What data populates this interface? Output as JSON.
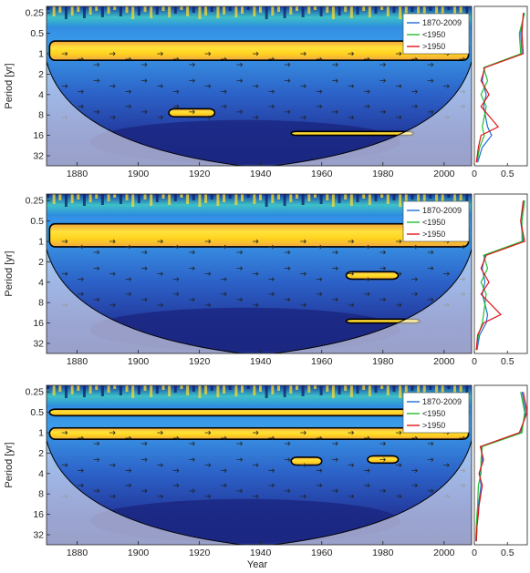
{
  "figure": {
    "x_label": "Year",
    "y_label": "Period [yr]"
  },
  "chart_data": [
    {
      "type": "heatmap",
      "title": "",
      "xlabel": "",
      "ylabel": "Period [yr]",
      "x_ticks": [
        1880,
        1900,
        1920,
        1940,
        1960,
        1980,
        2000
      ],
      "y_ticks": [
        "0.25",
        "0.5",
        "1",
        "2",
        "4",
        "8",
        "16",
        "32"
      ],
      "xlim": [
        1870,
        2009
      ],
      "ylim_period": [
        0.2,
        45
      ],
      "log_scale_y": true,
      "significant_bands": [
        {
          "x0": 1871,
          "x1": 2008,
          "p0": 0.65,
          "p1": 1.25
        },
        {
          "x0": 1910,
          "x1": 1925,
          "p0": 6.5,
          "p1": 8.5
        },
        {
          "x0": 1950,
          "x1": 1990,
          "p0": 14,
          "p1": 16
        }
      ],
      "cone_min_year": 1939,
      "side_panel": {
        "x_ticks": [
          "0",
          "0.5"
        ],
        "xlim": [
          0,
          0.8
        ],
        "series": [
          {
            "name": "1870-2009",
            "color": "#1f6fd6",
            "values": [
              0.75,
              0.7,
              0.72,
              0.15,
              0.12,
              0.18,
              0.14,
              0.2,
              0.26,
              0.12,
              0.05
            ]
          },
          {
            "name": "<1950",
            "color": "#1fbf2f",
            "values": [
              0.76,
              0.68,
              0.7,
              0.14,
              0.2,
              0.1,
              0.18,
              0.12,
              0.15,
              0.08,
              0.04
            ]
          },
          {
            "name": ">1950",
            "color": "#e0141a",
            "values": [
              0.74,
              0.72,
              0.74,
              0.16,
              0.1,
              0.22,
              0.1,
              0.36,
              0.1,
              0.06,
              0.03
            ]
          }
        ]
      },
      "legend": {
        "position": "top-right",
        "entries": [
          "1870-2009",
          "<1950",
          ">1950"
        ]
      }
    },
    {
      "type": "heatmap",
      "title": "",
      "xlabel": "",
      "ylabel": "Period [yr]",
      "x_ticks": [
        1880,
        1900,
        1920,
        1940,
        1960,
        1980,
        2000
      ],
      "y_ticks": [
        "0.25",
        "0.5",
        "1",
        "2",
        "4",
        "8",
        "16",
        "32"
      ],
      "xlim": [
        1870,
        2009
      ],
      "ylim_period": [
        0.2,
        45
      ],
      "log_scale_y": true,
      "significant_bands": [
        {
          "x0": 1871,
          "x1": 2008,
          "p0": 0.55,
          "p1": 1.2
        },
        {
          "x0": 1968,
          "x1": 1985,
          "p0": 2.8,
          "p1": 3.6
        },
        {
          "x0": 1968,
          "x1": 1992,
          "p0": 14,
          "p1": 16
        }
      ],
      "cone_min_year": 1939,
      "side_panel": {
        "x_ticks": [
          "0",
          "0.5"
        ],
        "xlim": [
          0,
          0.8
        ],
        "series": [
          {
            "name": "1870-2009",
            "color": "#1f6fd6",
            "values": [
              0.75,
              0.7,
              0.74,
              0.16,
              0.12,
              0.16,
              0.12,
              0.2,
              0.18,
              0.08,
              0.04
            ]
          },
          {
            "name": "<1950",
            "color": "#1fbf2f",
            "values": [
              0.76,
              0.72,
              0.72,
              0.14,
              0.2,
              0.1,
              0.18,
              0.14,
              0.12,
              0.06,
              0.03
            ]
          },
          {
            "name": ">1950",
            "color": "#e0141a",
            "values": [
              0.74,
              0.7,
              0.76,
              0.18,
              0.1,
              0.22,
              0.1,
              0.4,
              0.14,
              0.05,
              0.03
            ]
          }
        ]
      },
      "legend": {
        "position": "top-right",
        "entries": [
          "1870-2009",
          "<1950",
          ">1950"
        ]
      }
    },
    {
      "type": "heatmap",
      "title": "",
      "xlabel": "Year",
      "ylabel": "Period [yr]",
      "x_ticks": [
        1880,
        1900,
        1920,
        1940,
        1960,
        1980,
        2000
      ],
      "y_ticks": [
        "0.25",
        "0.5",
        "1",
        "2",
        "4",
        "8",
        "16",
        "32"
      ],
      "xlim": [
        1870,
        2009
      ],
      "ylim_period": [
        0.2,
        45
      ],
      "log_scale_y": true,
      "significant_bands": [
        {
          "x0": 1871,
          "x1": 2008,
          "p0": 0.45,
          "p1": 0.56
        },
        {
          "x0": 1871,
          "x1": 2008,
          "p0": 0.85,
          "p1": 1.25
        },
        {
          "x0": 1950,
          "x1": 1960,
          "p0": 2.3,
          "p1": 3.0
        },
        {
          "x0": 1975,
          "x1": 1985,
          "p0": 2.2,
          "p1": 2.8
        }
      ],
      "cone_min_year": 1939,
      "side_panel": {
        "x_ticks": [
          "0",
          "0.5"
        ],
        "xlim": [
          0,
          0.8
        ],
        "series": [
          {
            "name": "1870-2009",
            "color": "#1f6fd6",
            "values": [
              0.72,
              0.78,
              0.7,
              0.1,
              0.12,
              0.08,
              0.1,
              0.06,
              0.05,
              0.04,
              0.03
            ]
          },
          {
            "name": "<1950",
            "color": "#1fbf2f",
            "values": [
              0.7,
              0.76,
              0.72,
              0.12,
              0.1,
              0.1,
              0.06,
              0.05,
              0.04,
              0.03,
              0.02
            ]
          },
          {
            "name": ">1950",
            "color": "#e0141a",
            "values": [
              0.74,
              0.8,
              0.68,
              0.09,
              0.14,
              0.07,
              0.12,
              0.07,
              0.06,
              0.04,
              0.03
            ]
          }
        ]
      },
      "legend": {
        "position": "top-right",
        "entries": [
          "1870-2009",
          "<1950",
          ">1950"
        ]
      }
    }
  ],
  "colors": {
    "low_power": "#1e2f8f",
    "mid_power": "#2e86e6",
    "teal": "#3fb8c8",
    "high_power": "#ffd92a",
    "orange": "#f4a53a",
    "contour": "#000000"
  }
}
